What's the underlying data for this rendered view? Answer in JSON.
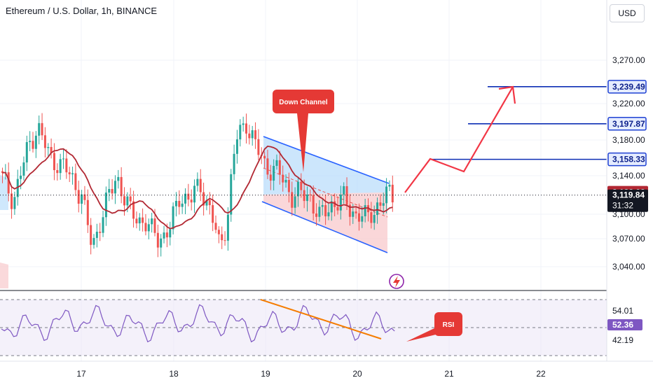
{
  "header": {
    "title": "Ethereum / U.S. Dollar, 1h, BINANCE",
    "currency": "USD"
  },
  "colors": {
    "up": "#26a69a",
    "down": "#ef5350",
    "ma": "#b22833",
    "channel_line": "#2962ff",
    "channel_fill_top": "#bbdefb",
    "channel_fill_bottom": "#f8c9cc",
    "target_line": "#0d2fb5",
    "projection": "#f23645",
    "rsi_line": "#7e57c2",
    "rsi_trend": "#f57c00",
    "callout": "#e53935"
  },
  "chart_data": {
    "type": "candlestick",
    "title": "Ethereum / U.S. Dollar, 1h, BINANCE",
    "y_ticks": [
      "3,270.00",
      "3,220.00",
      "3,180.00",
      "3,140.00",
      "3,100.00",
      "3,070.00",
      "3,040.00"
    ],
    "x_ticks": [
      "17",
      "18",
      "19",
      "20",
      "21",
      "22"
    ],
    "price_labels": [
      {
        "value": 3239.49,
        "text": "3,239.49",
        "kind": "target"
      },
      {
        "value": 3197.87,
        "text": "3,197.87",
        "kind": "target"
      },
      {
        "value": 3158.33,
        "text": "3,158.33",
        "kind": "target"
      },
      {
        "value": 3122.08,
        "text": "3,122.08",
        "kind": "ma"
      },
      {
        "value": 3119.84,
        "text": "3,119.84",
        "kind": "last"
      }
    ],
    "countdown": "31:32",
    "target_levels": [
      3239.49,
      3197.87,
      3158.33
    ],
    "annotations": {
      "down_channel": "Down Channel",
      "rsi": "RSI"
    },
    "rsi": {
      "upper_label": "54.01",
      "value_label": "52.36",
      "lower_label": "42.19"
    }
  }
}
